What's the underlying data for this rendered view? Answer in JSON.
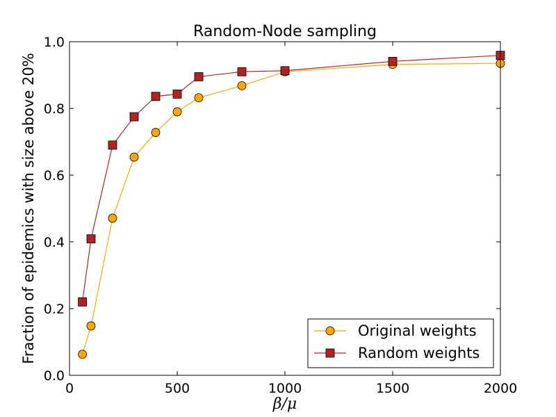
{
  "chart_data": {
    "type": "line",
    "title": "Random-Node sampling",
    "xlabel": "β/μ",
    "ylabel": "Fraction of epidemics with size above 20%",
    "xlim": [
      0,
      2000
    ],
    "ylim": [
      0.0,
      1.0
    ],
    "xticks": [
      0,
      500,
      1000,
      1500,
      2000
    ],
    "xtick_labels": [
      "0",
      "500",
      "1000",
      "1500",
      "2000"
    ],
    "yticks": [
      0.0,
      0.2,
      0.4,
      0.6,
      0.8,
      1.0
    ],
    "ytick_labels": [
      "0.0",
      "0.2",
      "0.4",
      "0.6",
      "0.8",
      "1.0"
    ],
    "legend_position": "lower-right",
    "series": [
      {
        "name": "Original weights",
        "color": "#FFA500",
        "marker": "circle",
        "x": [
          60,
          100,
          200,
          300,
          400,
          500,
          600,
          800,
          1000,
          1500,
          2000
        ],
        "values": [
          0.063,
          0.148,
          0.471,
          0.654,
          0.728,
          0.79,
          0.832,
          0.868,
          0.91,
          0.932,
          0.935
        ]
      },
      {
        "name": "Random weights",
        "color": "#B22222",
        "marker": "square",
        "x": [
          60,
          100,
          200,
          300,
          400,
          500,
          600,
          800,
          1000,
          1500,
          2000
        ],
        "values": [
          0.22,
          0.409,
          0.69,
          0.775,
          0.836,
          0.843,
          0.895,
          0.91,
          0.913,
          0.941,
          0.959
        ]
      }
    ]
  }
}
